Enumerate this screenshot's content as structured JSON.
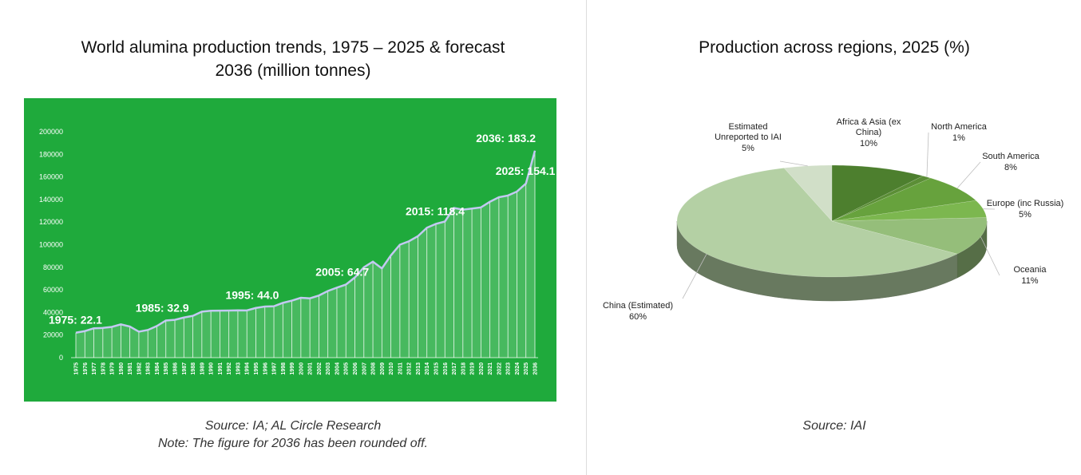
{
  "chart_data": [
    {
      "type": "area",
      "title_line1": "World alumina production trends, 1975 – 2025 & forecast",
      "title_line2": "2036 (million tonnes)",
      "source": "Source: IA; AL Circle Research",
      "note": "Note: The figure for 2036 has been rounded off.",
      "ylim": [
        0,
        200000
      ],
      "y_ticks": [
        "0",
        "20000",
        "40000",
        "60000",
        "80000",
        "100000",
        "120000",
        "140000",
        "160000",
        "180000",
        "200000"
      ],
      "x": [
        "1975",
        "1976",
        "1977",
        "1978",
        "1979",
        "1980",
        "1981",
        "1982",
        "1983",
        "1984",
        "1985",
        "1986",
        "1987",
        "1988",
        "1989",
        "1990",
        "1991",
        "1992",
        "1993",
        "1994",
        "1995",
        "1996",
        "1997",
        "1998",
        "1999",
        "2000",
        "2001",
        "2002",
        "2003",
        "2004",
        "2005",
        "2006",
        "2007",
        "2008",
        "2009",
        "2010",
        "2011",
        "2012",
        "2013",
        "2014",
        "2015",
        "2016",
        "2017",
        "2018",
        "2019",
        "2020",
        "2021",
        "2022",
        "2023",
        "2024",
        "2025",
        "2036"
      ],
      "values": [
        22100,
        23500,
        26000,
        26300,
        27200,
        29500,
        27500,
        23000,
        24500,
        28000,
        32900,
        33500,
        35500,
        37000,
        40700,
        41500,
        41600,
        41700,
        41900,
        41800,
        44000,
        45200,
        45500,
        48500,
        50500,
        53000,
        52500,
        55000,
        59000,
        62000,
        64700,
        71000,
        80000,
        85000,
        79000,
        90500,
        100000,
        103000,
        107500,
        115000,
        118400,
        120500,
        132500,
        131000,
        132000,
        133000,
        138000,
        142000,
        143500,
        147000,
        154100,
        183200
      ],
      "annotations": [
        {
          "x": "1975",
          "label": "1975: 22.1"
        },
        {
          "x": "1985",
          "label": "1985: 32.9"
        },
        {
          "x": "1995",
          "label": "1995: 44.0"
        },
        {
          "x": "2005",
          "label": "2005: 64.7"
        },
        {
          "x": "2015",
          "label": "2015: 118.4"
        },
        {
          "x": "2025",
          "label": "2025: 154.1"
        },
        {
          "x": "2036",
          "label": "2036: 183.2"
        }
      ],
      "colors": {
        "background": "#1faa3c",
        "line": "#c3c9f2",
        "fill": "#ffffff"
      }
    },
    {
      "type": "pie",
      "title": "Production across regions, 2025 (%)",
      "source": "Source: IAI",
      "slices": [
        {
          "label_line1": "Africa & Asia (ex",
          "label_line2": "China)",
          "pct_label": "10%",
          "value": 10,
          "color": "#4d7f2e"
        },
        {
          "label_line1": "North America",
          "label_line2": "",
          "pct_label": "1%",
          "value": 1,
          "color": "#5b8e36"
        },
        {
          "label_line1": "South America",
          "label_line2": "",
          "pct_label": "8%",
          "value": 8,
          "color": "#67a23d"
        },
        {
          "label_line1": "Europe (inc Russia)",
          "label_line2": "",
          "pct_label": "5%",
          "value": 5,
          "color": "#7cb74f"
        },
        {
          "label_line1": "Oceania",
          "label_line2": "",
          "pct_label": "11%",
          "value": 11,
          "color": "#95be7a"
        },
        {
          "label_line1": "China (Estimated)",
          "label_line2": "",
          "pct_label": "60%",
          "value": 60,
          "color": "#b4d0a4"
        },
        {
          "label_line1": "Estimated",
          "label_line2": "Unreported to IAI",
          "pct_label": "5%",
          "value": 5,
          "color": "#d1dfc8"
        }
      ]
    }
  ]
}
